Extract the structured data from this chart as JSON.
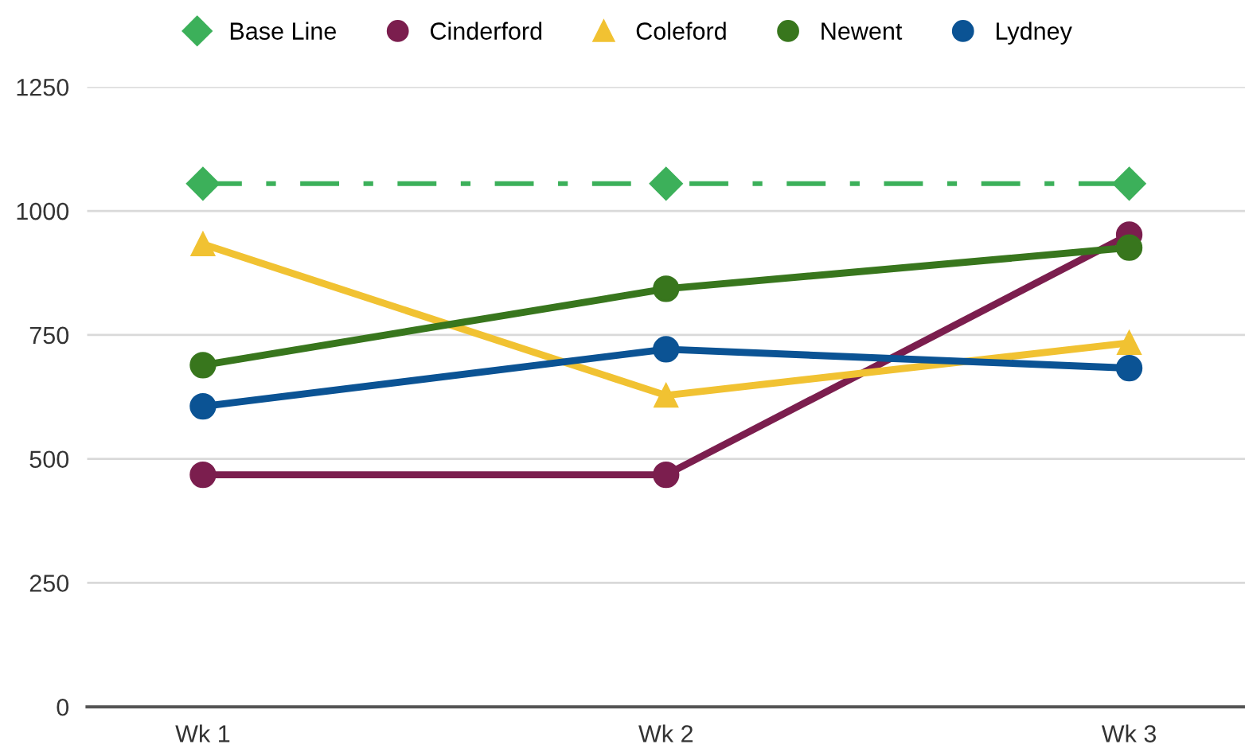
{
  "chart_data": {
    "type": "line",
    "categories": [
      "Wk 1",
      "Wk 2",
      "Wk 3"
    ],
    "series": [
      {
        "name": "Base Line",
        "color": "#3cb05a",
        "values": [
          1055,
          1055,
          1055
        ],
        "marker": "diamond",
        "line_style": "dashdot"
      },
      {
        "name": "Cinderford",
        "color": "#7b1e4e",
        "values": [
          468,
          468,
          952
        ],
        "marker": "circle"
      },
      {
        "name": "Coleford",
        "color": "#f1c232",
        "values": [
          933,
          628,
          734
        ],
        "marker": "triangle"
      },
      {
        "name": "Newent",
        "color": "#38761d",
        "values": [
          689,
          843,
          926
        ],
        "marker": "circle"
      },
      {
        "name": "Lydney",
        "color": "#0b5394",
        "values": [
          606,
          721,
          683
        ],
        "marker": "circle"
      }
    ],
    "ylim": [
      0,
      1250
    ],
    "yticks": [
      0,
      250,
      500,
      750,
      1000,
      1250
    ],
    "grid": "y",
    "legend": "top"
  }
}
